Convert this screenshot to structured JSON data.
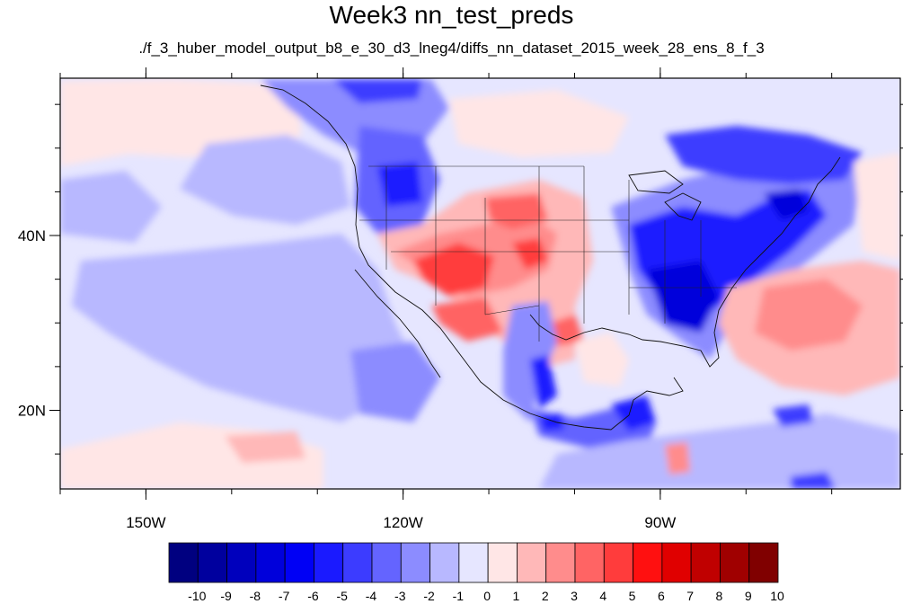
{
  "title": "Week3 nn_test_preds",
  "subtitle": "./f_3_huber_model_output_b8_e_30_d3_lneg4/diffs_nn_dataset_2015_week_28_ens_8_f_3",
  "map": {
    "lon_range": [
      -160,
      -62
    ],
    "lat_range": [
      11,
      58
    ],
    "x_ticks": [
      {
        "value": -150,
        "label": "150W"
      },
      {
        "value": -120,
        "label": "120W"
      },
      {
        "value": -90,
        "label": "90W"
      }
    ],
    "y_ticks": [
      {
        "value": 40,
        "label": "40N"
      },
      {
        "value": 20,
        "label": "20N"
      }
    ]
  },
  "colorbar": {
    "labels": [
      "-10",
      "-9",
      "-8",
      "-7",
      "-6",
      "-5",
      "-4",
      "-3",
      "-2",
      "-1",
      "0",
      "1",
      "2",
      "3",
      "4",
      "5",
      "6",
      "7",
      "8",
      "9",
      "10"
    ],
    "colors": [
      "#000080",
      "#00009e",
      "#0000bd",
      "#0000db",
      "#0000f5",
      "#1a1aff",
      "#3c3cff",
      "#6464ff",
      "#8c8cff",
      "#b8b8ff",
      "#e6e6ff",
      "#ffe6e6",
      "#ffb8b8",
      "#ff8c8c",
      "#ff6464",
      "#ff3c3c",
      "#ff1010",
      "#e00000",
      "#c00000",
      "#a00000",
      "#800000"
    ]
  }
}
